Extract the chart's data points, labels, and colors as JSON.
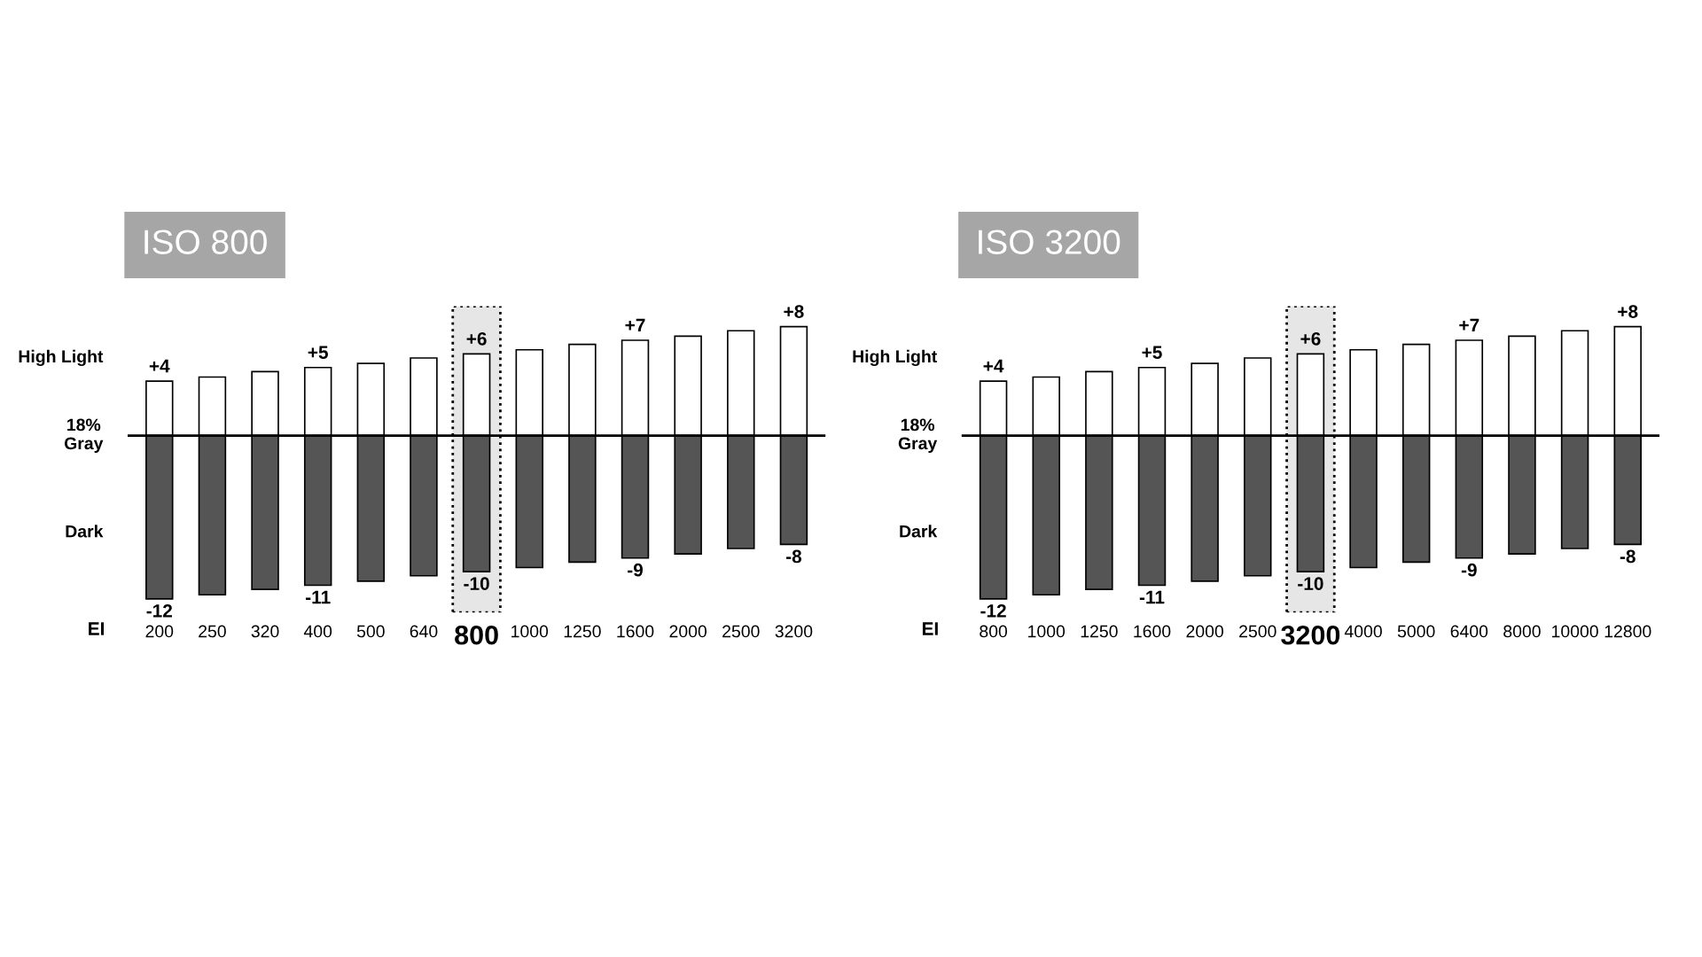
{
  "chart_data": [
    {
      "type": "bar",
      "title": "ISO 800",
      "xlabel": "EI",
      "stacked": true,
      "categories": [
        "200",
        "250",
        "320",
        "400",
        "500",
        "640",
        "800",
        "1000",
        "1250",
        "1600",
        "2000",
        "2500",
        "3200"
      ],
      "series": [
        {
          "color": "#ffffff",
          "values": [
            4,
            4.3,
            4.7,
            5,
            5.3,
            5.7,
            6,
            6.3,
            6.7,
            7,
            7.3,
            7.7,
            8
          ],
          "value_labels": [
            "+4",
            null,
            null,
            "+5",
            null,
            null,
            "+6",
            null,
            null,
            "+7",
            null,
            null,
            "+8"
          ]
        },
        {
          "color": "#555555",
          "values": [
            -12,
            -11.7,
            -11.3,
            -11,
            -10.7,
            -10.3,
            -10,
            -9.7,
            -9.3,
            -9,
            -8.7,
            -8.3,
            -8
          ],
          "value_labels": [
            "-12",
            null,
            null,
            "-11",
            null,
            null,
            "-10",
            null,
            null,
            "-9",
            null,
            null,
            "-8"
          ]
        }
      ],
      "ylim": [
        -13,
        9.5
      ],
      "annotations": [
        "High Light",
        "18%\nGray",
        "Dark"
      ],
      "ref_lines": [
        {
          "axis": "y",
          "value": 0,
          "color": "#000000"
        }
      ],
      "bands": [
        {
          "axis": "x",
          "from": "800",
          "to": "800",
          "color": "#e6e6e6"
        }
      ],
      "grid": false,
      "legend": false
    },
    {
      "type": "bar",
      "title": "ISO 3200",
      "xlabel": "EI",
      "stacked": true,
      "categories": [
        "800",
        "1000",
        "1250",
        "1600",
        "2000",
        "2500",
        "3200",
        "4000",
        "5000",
        "6400",
        "8000",
        "10000",
        "12800"
      ],
      "series": [
        {
          "color": "#ffffff",
          "values": [
            4,
            4.3,
            4.7,
            5,
            5.3,
            5.7,
            6,
            6.3,
            6.7,
            7,
            7.3,
            7.7,
            8
          ],
          "value_labels": [
            "+4",
            null,
            null,
            "+5",
            null,
            null,
            "+6",
            null,
            null,
            "+7",
            null,
            null,
            "+8"
          ]
        },
        {
          "color": "#555555",
          "values": [
            -12,
            -11.7,
            -11.3,
            -11,
            -10.7,
            -10.3,
            -10,
            -9.7,
            -9.3,
            -9,
            -8.7,
            -8.3,
            -8
          ],
          "value_labels": [
            "-12",
            null,
            null,
            "-11",
            null,
            null,
            "-10",
            null,
            null,
            "-9",
            null,
            null,
            "-8"
          ]
        }
      ],
      "ylim": [
        -13,
        9.5
      ],
      "annotations": [
        "High Light",
        "18%\nGray",
        "Dark"
      ],
      "ref_lines": [
        {
          "axis": "y",
          "value": 0,
          "color": "#000000"
        }
      ],
      "bands": [
        {
          "axis": "x",
          "from": "3200",
          "to": "3200",
          "color": "#e6e6e6"
        }
      ],
      "grid": false,
      "legend": false
    }
  ]
}
